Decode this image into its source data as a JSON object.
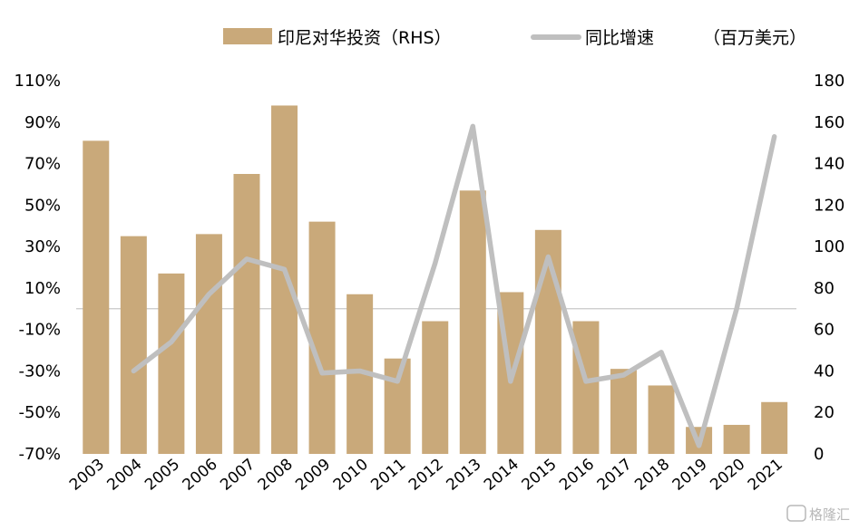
{
  "chart_data": {
    "type": "bar+line",
    "categories": [
      "2003",
      "2004",
      "2005",
      "2006",
      "2007",
      "2008",
      "2009",
      "2010",
      "2011",
      "2012",
      "2013",
      "2014",
      "2015",
      "2016",
      "2017",
      "2018",
      "2019",
      "2020",
      "2021"
    ],
    "series": [
      {
        "name": "印尼对华投资（RHS）",
        "kind": "bar",
        "axis": "right",
        "color": "#c9a97a",
        "values": [
          151,
          105,
          87,
          106,
          135,
          168,
          112,
          77,
          46,
          64,
          127,
          78,
          108,
          64,
          41,
          33,
          13,
          14,
          25
        ]
      },
      {
        "name": "同比增速",
        "kind": "line",
        "axis": "left",
        "color": "#bfbfbf",
        "values": [
          null,
          -30,
          -16,
          7,
          24,
          19,
          -31,
          -30,
          -35,
          22,
          88,
          -35,
          25,
          -35,
          -32,
          -21,
          -66,
          0,
          83
        ]
      }
    ],
    "left_axis": {
      "ylim": [
        -70,
        110
      ],
      "ticks": [
        -70,
        -50,
        -30,
        -10,
        10,
        30,
        50,
        70,
        90,
        110
      ],
      "tick_labels": [
        "-70%",
        "-50%",
        "-30%",
        "-10%",
        "10%",
        "30%",
        "50%",
        "70%",
        "90%",
        "110%"
      ]
    },
    "right_axis": {
      "ylim": [
        0,
        180
      ],
      "ticks": [
        0,
        20,
        40,
        60,
        80,
        100,
        120,
        140,
        160,
        180
      ],
      "tick_labels": [
        "0",
        "20",
        "40",
        "60",
        "80",
        "100",
        "120",
        "140",
        "160",
        "180"
      ]
    },
    "zero_line": 0,
    "grid": false,
    "legend_position": "top",
    "unit_label": "（百万美元）",
    "watermark": "格隆汇"
  }
}
